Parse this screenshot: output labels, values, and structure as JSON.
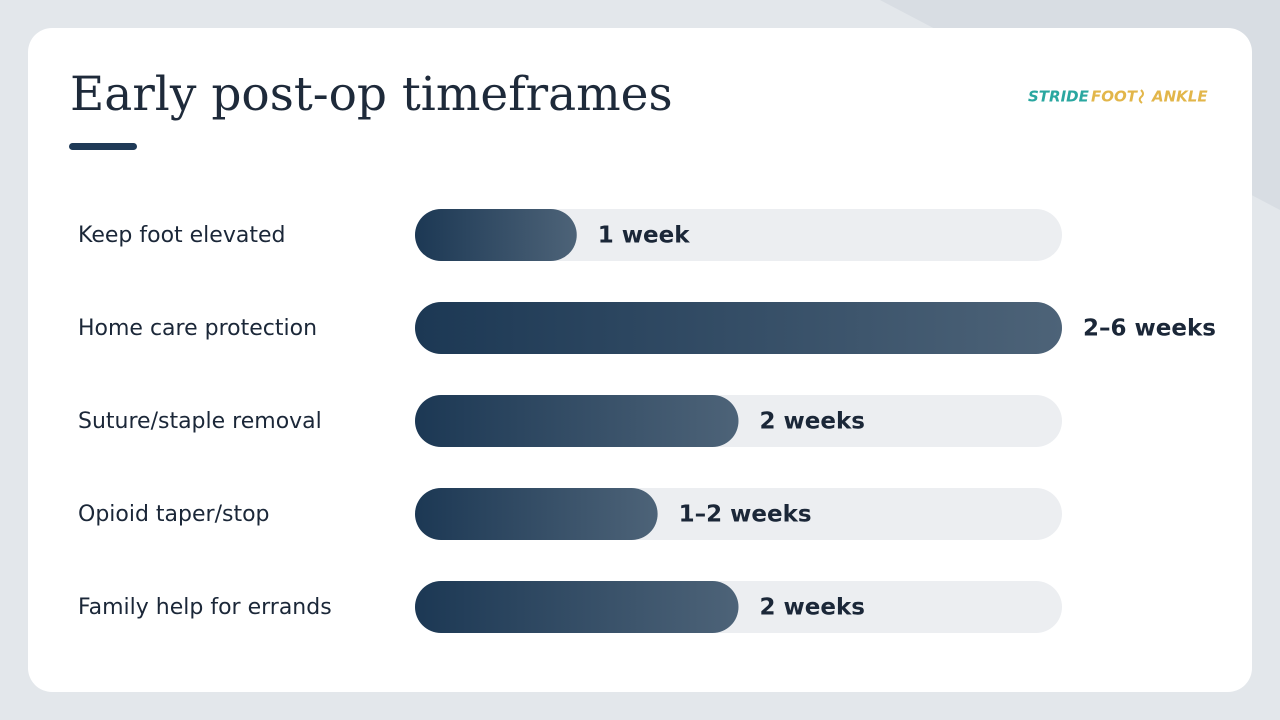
{
  "chart_data": {
    "type": "bar",
    "orientation": "horizontal",
    "title": "Early post-op timeframes",
    "logo": [
      "STRIDE",
      "FOOT",
      "ANKLE"
    ],
    "categories": [
      "Keep foot elevated",
      "Home care protection",
      "Suture/staple removal",
      "Opioid taper/stop",
      "Family help for errands"
    ],
    "values": [
      1,
      4,
      2,
      1.5,
      2
    ],
    "value_labels": [
      "1 week",
      "2–6 weeks",
      "2 weeks",
      "1–2 weeks",
      "2 weeks"
    ],
    "xlim": [
      0,
      4
    ],
    "color": [
      "#1c3854",
      "#4d6378"
    ],
    "track_color": "#eceef1"
  }
}
